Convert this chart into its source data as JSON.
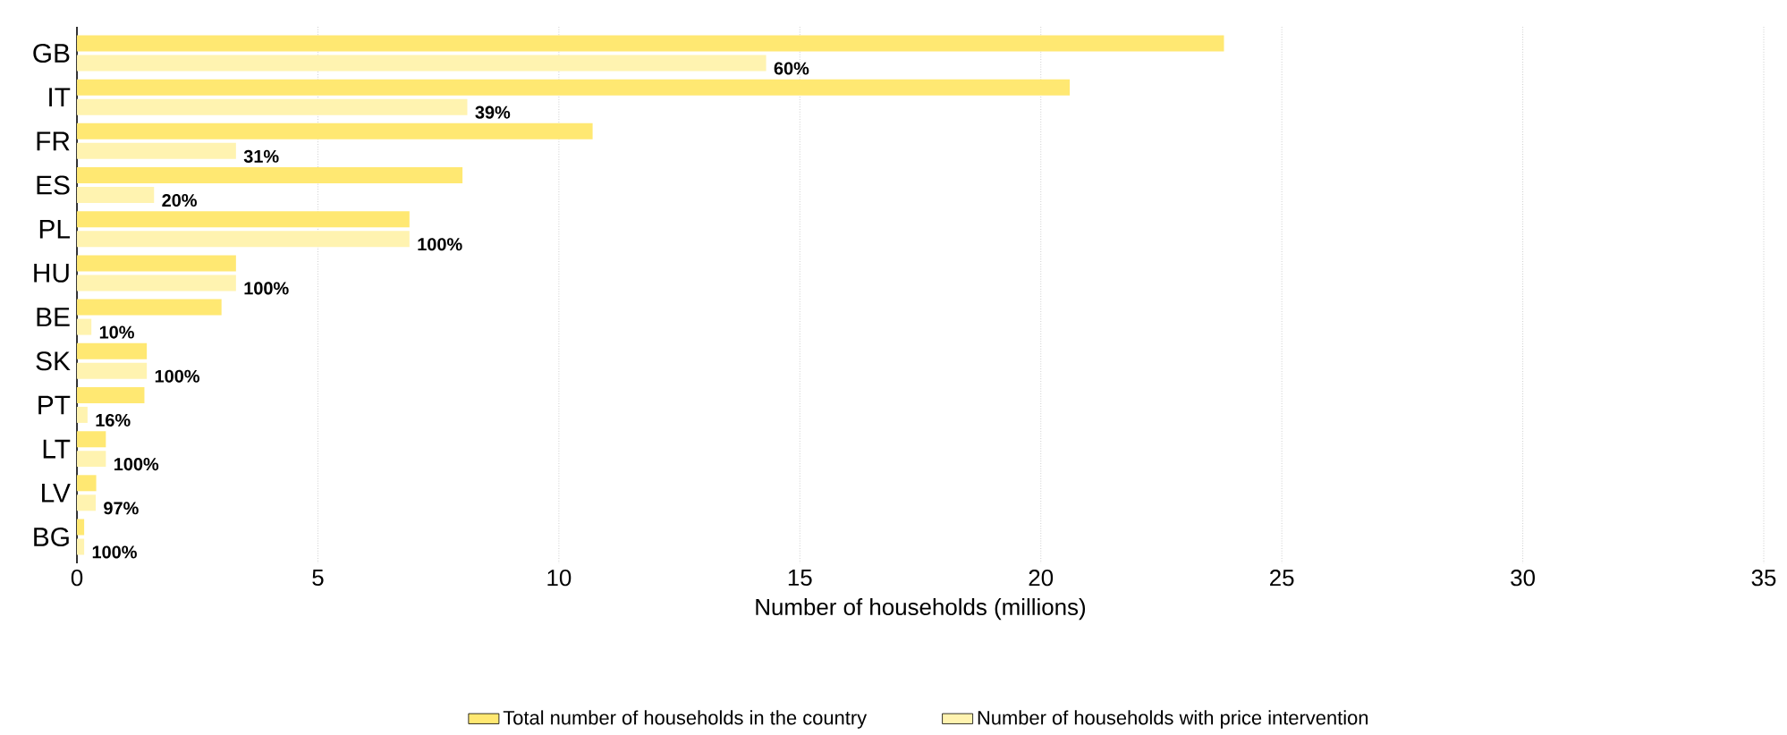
{
  "chart_data": {
    "type": "bar",
    "orientation": "horizontal",
    "xlabel": "Number of households (millions)",
    "categories": [
      "GB",
      "IT",
      "FR",
      "ES",
      "PL",
      "HU",
      "BE",
      "SK",
      "PT",
      "LT",
      "LV",
      "BG"
    ],
    "series": [
      {
        "name": "Total number of households in the country",
        "color": "#ffe872",
        "values": [
          23.8,
          20.6,
          10.7,
          8.0,
          6.9,
          3.3,
          3.0,
          1.45,
          1.4,
          0.6,
          0.4,
          0.15
        ]
      },
      {
        "name": "Number of households with price intervention",
        "color": "#fff3b0",
        "values": [
          14.3,
          8.1,
          3.3,
          1.6,
          6.9,
          3.3,
          0.3,
          1.45,
          0.22,
          0.6,
          0.39,
          0.15
        ]
      }
    ],
    "annotations": [
      {
        "text": "60%",
        "x": 14.3,
        "y": "GB"
      },
      {
        "text": "39%",
        "x": 8.1,
        "y": "IT"
      },
      {
        "text": "31%",
        "x": 3.3,
        "y": "FR"
      },
      {
        "text": "20%",
        "x": 1.6,
        "y": "ES"
      },
      {
        "text": "100%",
        "x": 6.9,
        "y": "PL"
      },
      {
        "text": "100%",
        "x": 3.3,
        "y": "HU"
      },
      {
        "text": "10%",
        "x": 0.3,
        "y": "BE"
      },
      {
        "text": "100%",
        "x": 1.45,
        "y": "SK"
      },
      {
        "text": "16%",
        "x": 0.22,
        "y": "PT"
      },
      {
        "text": "100%",
        "x": 0.6,
        "y": "LT"
      },
      {
        "text": "97%",
        "x": 0.39,
        "y": "LV"
      },
      {
        "text": "100%",
        "x": 0.15,
        "y": "BG"
      }
    ],
    "xlim": [
      0,
      35
    ],
    "xticks": [
      0,
      5,
      10,
      15,
      20,
      25,
      30,
      35
    ],
    "grid": "x",
    "legend": "bottom"
  }
}
